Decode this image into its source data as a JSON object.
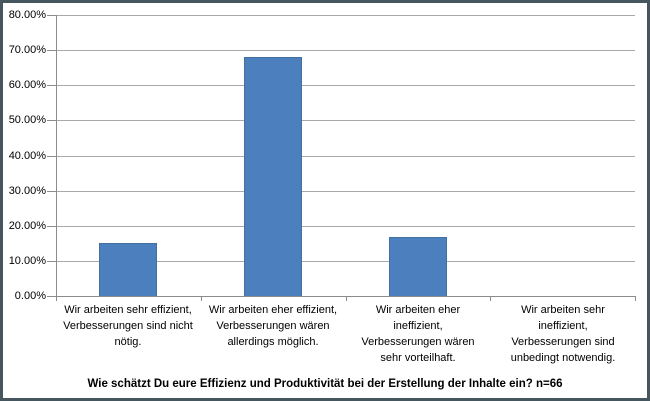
{
  "chart_data": {
    "type": "bar",
    "title": "Wie schätzt Du eure Effizienz und Produktivität bei der Erstellung der Inhalte ein? n=66",
    "n_respondents": 66,
    "categories": [
      "Wir arbeiten sehr effizient, Verbesserungen sind nicht nötig.",
      "Wir arbeiten eher effizient, Verbesserungen wären allerdings möglich.",
      "Wir arbeiten eher ineffizient, Verbesserungen wären sehr vorteilhaft.",
      "Wir arbeiten sehr ineffizient, Verbesserungen sind unbedingt notwendig."
    ],
    "category_lines": [
      [
        "Wir arbeiten sehr effizient,",
        "Verbesserungen sind nicht",
        "nötig."
      ],
      [
        "Wir arbeiten eher effizient,",
        "Verbesserungen wären",
        "allerdings möglich."
      ],
      [
        "Wir arbeiten eher",
        "ineffizient,",
        "Verbesserungen wären",
        "sehr vorteilhaft."
      ],
      [
        "Wir arbeiten sehr",
        "ineffizient,",
        "Verbesserungen sind",
        "unbedingt notwendig."
      ]
    ],
    "values": [
      15.15,
      68.18,
      16.67,
      0
    ],
    "ylim": [
      0,
      80
    ],
    "ytick_step": 10,
    "ytick_labels": [
      "80.00%",
      "70.00%",
      "60.00%",
      "50.00%",
      "40.00%",
      "30.00%",
      "20.00%",
      "10.00%",
      "0.00%"
    ],
    "xlabel": "",
    "ylabel": "",
    "legend": "none",
    "grid": true
  },
  "colors": {
    "bar_fill": "#4C7FBD",
    "bar_border": "#41719C",
    "gridline": "#A9A9A9",
    "axis": "#8C8C8C",
    "frame_border": "#46565F",
    "background": "#FFFFFF",
    "text": "#000000"
  }
}
